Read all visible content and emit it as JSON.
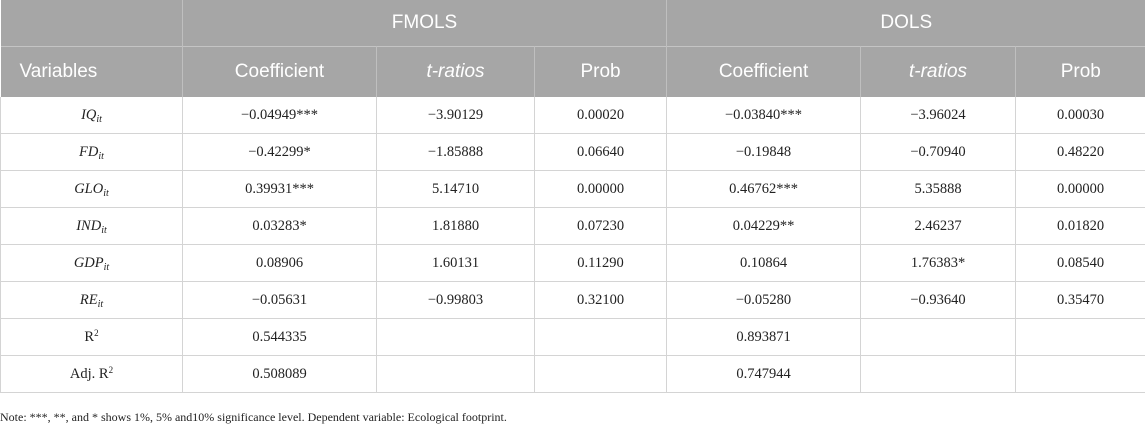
{
  "table": {
    "group_headers": {
      "left": "",
      "fmols": "FMOLS",
      "dols": "DOLS"
    },
    "column_headers": [
      "Variables",
      "Coefficient",
      "t-ratios",
      "Prob",
      "Coefficient",
      "t-ratios",
      "Prob"
    ],
    "rows": [
      {
        "var": "IQ",
        "sub": "it",
        "cells": [
          "−0.04949***",
          "−3.90129",
          "0.00020",
          "−0.03840***",
          "−3.96024",
          "0.00030"
        ]
      },
      {
        "var": "FD",
        "sub": "it",
        "cells": [
          "−0.42299*",
          "−1.85888",
          "0.06640",
          "−0.19848",
          "−0.70940",
          "0.48220"
        ]
      },
      {
        "var": "GLO",
        "sub": "it",
        "cells": [
          "0.39931***",
          "5.14710",
          "0.00000",
          "0.46762***",
          "5.35888",
          "0.00000"
        ]
      },
      {
        "var": "IND",
        "sub": "it",
        "cells": [
          "0.03283*",
          "1.81880",
          "0.07230",
          "0.04229**",
          "2.46237",
          "0.01820"
        ]
      },
      {
        "var": "GDP",
        "sub": "it",
        "cells": [
          "0.08906",
          "1.60131",
          "0.11290",
          "0.10864",
          "1.76383*",
          "0.08540"
        ]
      },
      {
        "var": "RE",
        "sub": "it",
        "cells": [
          "−0.05631",
          "−0.99803",
          "0.32100",
          "−0.05280",
          "−0.93640",
          "0.35470"
        ]
      }
    ],
    "stat_rows": [
      {
        "label": "R",
        "sup": "2",
        "cells": [
          "0.544335",
          "",
          "",
          "0.893871",
          "",
          ""
        ]
      },
      {
        "label": "Adj. R",
        "sup": "2",
        "cells": [
          "0.508089",
          "",
          "",
          "0.747944",
          "",
          ""
        ]
      }
    ]
  },
  "note": "Note: ***, **, and * shows 1%, 5% and10% significance level. Dependent variable: Ecological footprint."
}
